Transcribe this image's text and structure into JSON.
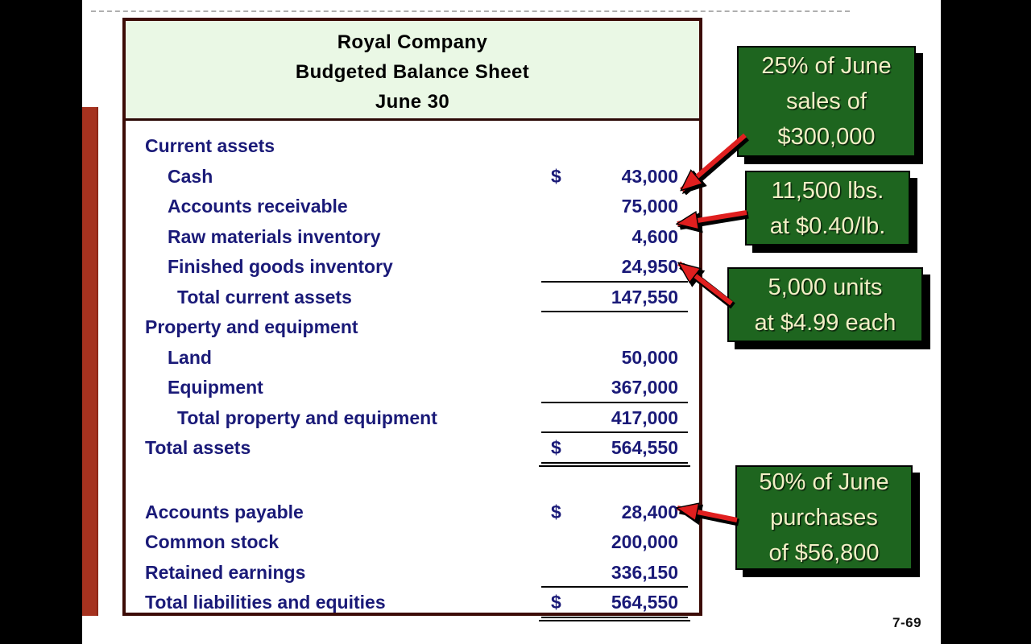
{
  "page": {
    "number_label": "7-69"
  },
  "colors": {
    "callout_green": "#1e651f",
    "callout_text_cream": "#f2efc6",
    "table_text_navy": "#1a1a78",
    "table_border_maroon": "#3c0c06",
    "header_bg_green": "#eaf8e5",
    "side_bar_red": "#a5321f",
    "arrow_red": "#e01f1f"
  },
  "balance_sheet": {
    "title_lines": [
      "Royal Company",
      "Budgeted Balance Sheet",
      "June 30"
    ],
    "rows": [
      {
        "label": "Current assets",
        "indent": 0,
        "currency": "",
        "amount": "",
        "underline": "none",
        "gap_after": false
      },
      {
        "label": "Cash",
        "indent": 1,
        "currency": "$",
        "amount": "43,000",
        "underline": "none",
        "gap_after": false
      },
      {
        "label": "Accounts receivable",
        "indent": 1,
        "currency": "",
        "amount": "75,000",
        "underline": "none",
        "gap_after": false
      },
      {
        "label": "Raw materials inventory",
        "indent": 1,
        "currency": "",
        "amount": "4,600",
        "underline": "none",
        "gap_after": false
      },
      {
        "label": "Finished goods inventory",
        "indent": 1,
        "currency": "",
        "amount": "24,950",
        "underline": "single",
        "gap_after": false
      },
      {
        "label": "Total current assets",
        "indent": 2,
        "currency": "",
        "amount": "147,550",
        "underline": "single",
        "gap_after": false
      },
      {
        "label": "Property and equipment",
        "indent": 0,
        "currency": "",
        "amount": "",
        "underline": "none",
        "gap_after": false
      },
      {
        "label": "Land",
        "indent": 1,
        "currency": "",
        "amount": "50,000",
        "underline": "none",
        "gap_after": false
      },
      {
        "label": "Equipment",
        "indent": 1,
        "currency": "",
        "amount": "367,000",
        "underline": "single",
        "gap_after": false
      },
      {
        "label": "Total property and equipment",
        "indent": 2,
        "currency": "",
        "amount": "417,000",
        "underline": "single",
        "gap_after": false
      },
      {
        "label": "Total assets",
        "indent": 0,
        "currency": "$",
        "amount": "564,550",
        "underline": "double",
        "gap_after": true
      },
      {
        "label": "Accounts payable",
        "indent": 0,
        "currency": "$",
        "amount": "28,400",
        "underline": "none",
        "gap_after": false
      },
      {
        "label": "Common stock",
        "indent": 0,
        "currency": "",
        "amount": "200,000",
        "underline": "none",
        "gap_after": false
      },
      {
        "label": "Retained earnings",
        "indent": 0,
        "currency": "",
        "amount": "336,150",
        "underline": "single",
        "gap_after": false
      },
      {
        "label": "Total liabilities and equities",
        "indent": 0,
        "currency": "$",
        "amount": "564,550",
        "underline": "double",
        "gap_after": false
      }
    ]
  },
  "callouts": [
    {
      "lines": [
        "25% of June",
        "sales of",
        "$300,000"
      ],
      "points_to": "Accounts receivable 75,000"
    },
    {
      "lines": [
        "11,500 lbs.",
        "at $0.40/lb."
      ],
      "points_to": "Raw materials inventory 4,600"
    },
    {
      "lines": [
        "5,000 units",
        "at $4.99 each"
      ],
      "points_to": "Finished goods inventory 24,950"
    },
    {
      "lines": [
        "50% of June",
        "purchases",
        "of $56,800"
      ],
      "points_to": "Accounts payable 28,400"
    }
  ]
}
